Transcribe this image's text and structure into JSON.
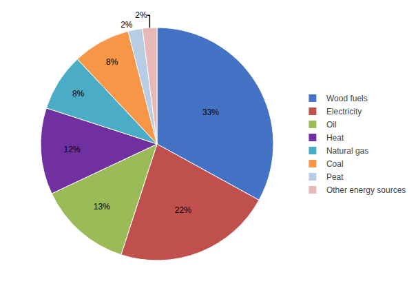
{
  "chart_data": {
    "type": "pie",
    "categories": [
      "Wood fuels",
      "Electricity",
      "Oil",
      "Heat",
      "Natural gas",
      "Coal",
      "Peat",
      "Other energy sources"
    ],
    "values": [
      33,
      22,
      13,
      12,
      8,
      8,
      2,
      2
    ],
    "value_labels": [
      "33%",
      "22%",
      "13%",
      "12%",
      "8%",
      "8%",
      "2%",
      "2%"
    ],
    "colors": [
      "#4472C4",
      "#C0504D",
      "#9BBB59",
      "#7030A0",
      "#4BACC6",
      "#F79646",
      "#B8CCE4",
      "#E6B8B7"
    ],
    "data_labels": true,
    "legend": "right"
  }
}
